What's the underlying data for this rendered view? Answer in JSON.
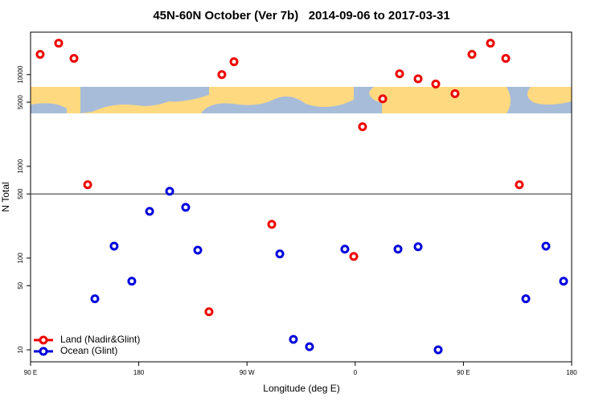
{
  "chart_data": {
    "type": "scatter",
    "title": "45N-60N October (Ver 7b)   2014-09-06 to 2017-03-31",
    "x_label": "Longitude (deg E)",
    "y_label": "N Total",
    "xlim": [
      90,
      540
    ],
    "xticks": [
      {
        "value": 90,
        "label": "90 E"
      },
      180,
      {
        "value": 270,
        "label": "90 W"
      },
      {
        "value": 360,
        "label": "0"
      },
      {
        "value": 450,
        "label": "90 E"
      },
      {
        "value": 540,
        "label": "180"
      }
    ],
    "ylim": [
      7.4,
      29000
    ],
    "yticks": [
      10,
      50,
      100,
      500,
      1000,
      5000,
      10000
    ],
    "log_y": true,
    "reference_line": 500,
    "legend": "bottom-left",
    "series": [
      {
        "name": "Land (Nadir&Glint)",
        "color": "#ee0000",
        "x": [
          98.0,
          113.4,
          126.1,
          137.5,
          238.4,
          249.1,
          259.2,
          290.6,
          358.8,
          366.1,
          382.9,
          396.9,
          412.3,
          427.0,
          443.0,
          457.1,
          472.5,
          485.2,
          496.5
        ],
        "values": [
          16600,
          22000,
          15000,
          630,
          26,
          10000,
          13800,
          233,
          104,
          2700,
          5450,
          10200,
          9000,
          7900,
          6200,
          16600,
          22000,
          15000,
          630
        ]
      },
      {
        "name": "Ocean (Glint)",
        "color": "#0000dd",
        "x": [
          143.5,
          159.5,
          174.2,
          189.0,
          205.7,
          219.0,
          229.1,
          297.3,
          308.6,
          322.0,
          351.4,
          395.6,
          412.3,
          429.0,
          501.9,
          518.6,
          533.3
        ],
        "values": [
          36,
          135,
          56,
          323,
          535,
          357,
          122,
          111,
          13,
          10.8,
          125,
          125,
          133,
          10,
          36,
          135,
          56
        ]
      }
    ]
  }
}
